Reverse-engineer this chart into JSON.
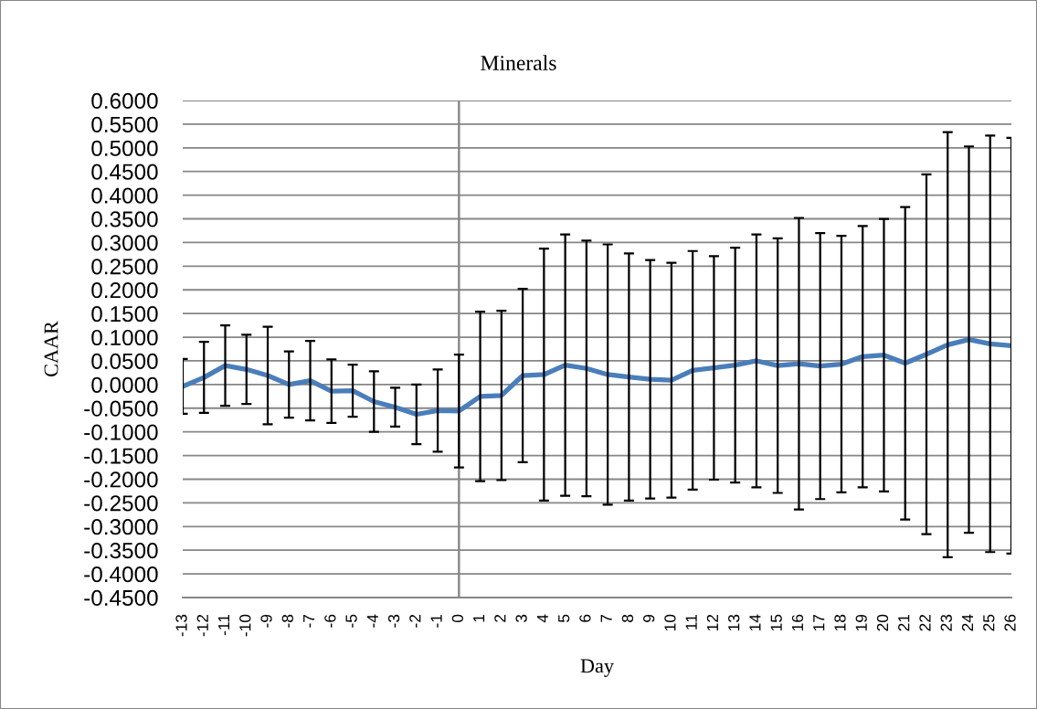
{
  "chart_data": {
    "type": "line",
    "title": "Minerals",
    "xlabel": "Day",
    "ylabel": "CAAR",
    "x": [
      -13,
      -12,
      -11,
      -10,
      -9,
      -8,
      -7,
      -6,
      -5,
      -4,
      -3,
      -2,
      -1,
      0,
      1,
      2,
      3,
      4,
      5,
      6,
      7,
      8,
      9,
      10,
      11,
      12,
      13,
      14,
      15,
      16,
      17,
      18,
      19,
      20,
      21,
      22,
      23,
      24,
      25,
      26
    ],
    "series": [
      {
        "color": "#4a7ebb",
        "values": [
          -0.004,
          0.015,
          0.04,
          0.032,
          0.019,
          0.0,
          0.008,
          -0.014,
          -0.013,
          -0.036,
          -0.048,
          -0.063,
          -0.055,
          -0.056,
          -0.025,
          -0.023,
          0.019,
          0.021,
          0.041,
          0.034,
          0.021,
          0.016,
          0.011,
          0.009,
          0.03,
          0.035,
          0.041,
          0.05,
          0.04,
          0.044,
          0.039,
          0.043,
          0.059,
          0.062,
          0.045,
          0.064,
          0.084,
          0.095,
          0.086,
          0.082
        ],
        "errors": [
          0.058,
          0.075,
          0.085,
          0.073,
          0.103,
          0.07,
          0.084,
          0.067,
          0.055,
          0.064,
          0.041,
          0.063,
          0.087,
          0.119,
          0.179,
          0.179,
          0.183,
          0.266,
          0.276,
          0.27,
          0.275,
          0.261,
          0.252,
          0.248,
          0.252,
          0.236,
          0.248,
          0.267,
          0.269,
          0.308,
          0.281,
          0.271,
          0.276,
          0.288,
          0.33,
          0.38,
          0.449,
          0.408,
          0.44,
          0.439
        ]
      }
    ],
    "xlim": [
      -13,
      26
    ],
    "xticks": [
      -13,
      -12,
      -11,
      -10,
      -9,
      -8,
      -7,
      -6,
      -5,
      -4,
      -3,
      -2,
      -1,
      0,
      1,
      2,
      3,
      4,
      5,
      6,
      7,
      8,
      9,
      10,
      11,
      12,
      13,
      14,
      15,
      16,
      17,
      18,
      19,
      20,
      21,
      22,
      23,
      24,
      25,
      26
    ],
    "ylim": [
      -0.45,
      0.6
    ],
    "yticks": [
      {
        "value": -0.45,
        "label": "-0.4500"
      },
      {
        "value": -0.4,
        "label": "-0.4000"
      },
      {
        "value": -0.35,
        "label": "-0.3500"
      },
      {
        "value": -0.3,
        "label": "-0.3000"
      },
      {
        "value": -0.25,
        "label": "-0.2500"
      },
      {
        "value": -0.2,
        "label": "-0.2000"
      },
      {
        "value": -0.15,
        "label": "-0.1500"
      },
      {
        "value": -0.1,
        "label": "-0.1000"
      },
      {
        "value": -0.05,
        "label": "-0.0500"
      },
      {
        "value": 0,
        "label": "0.0000"
      },
      {
        "value": 0.05,
        "label": "0.0500"
      },
      {
        "value": 0.1,
        "label": "0.1000"
      },
      {
        "value": 0.15,
        "label": "0.1500"
      },
      {
        "value": 0.2,
        "label": "0.2000"
      },
      {
        "value": 0.25,
        "label": "0.2500"
      },
      {
        "value": 0.3,
        "label": "0.3000"
      },
      {
        "value": 0.35,
        "label": "0.3500"
      },
      {
        "value": 0.4,
        "label": "0.4000"
      },
      {
        "value": 0.45,
        "label": "0.4500"
      },
      {
        "value": 0.5,
        "label": "0.5000"
      },
      {
        "value": 0.55,
        "label": "0.5500"
      },
      {
        "value": 0.6,
        "label": "0.6000"
      }
    ],
    "grid": "y",
    "marker": "none",
    "line_style": "solid",
    "ref_lines": [
      {
        "axis": "x",
        "value": 0,
        "color": "#868686"
      }
    ]
  }
}
